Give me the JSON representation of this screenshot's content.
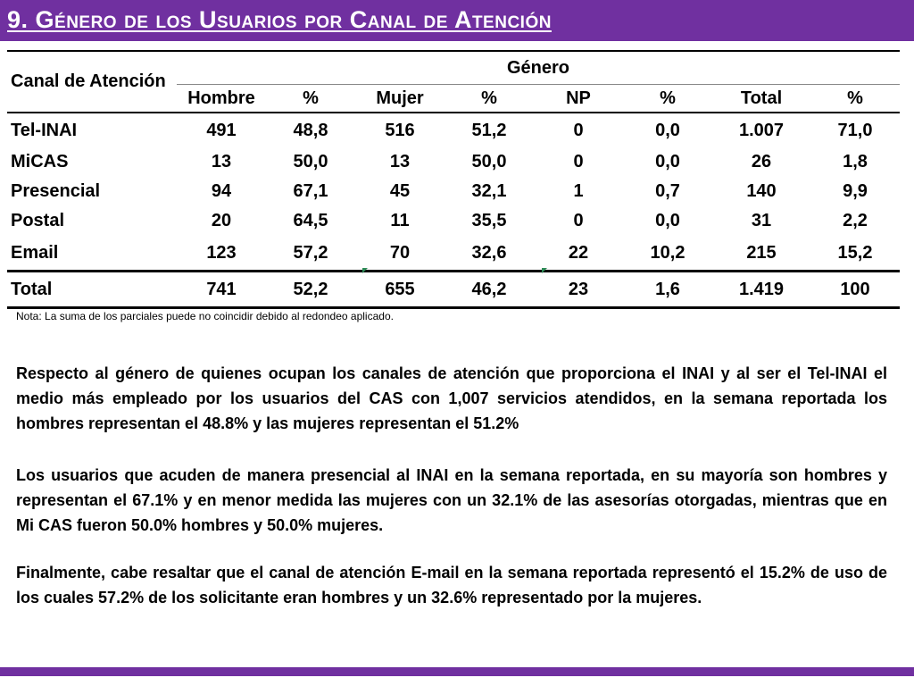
{
  "title": "9. Género de los Usuarios por Canal de Atención",
  "table": {
    "canal_header": "Canal de Atención",
    "genero_header": "Género",
    "columns": [
      "Hombre",
      "%",
      "Mujer",
      "%",
      "NP",
      "%",
      "Total",
      "%"
    ],
    "rows": [
      {
        "label": "Tel-INAI",
        "values": [
          "491",
          "48,8",
          "516",
          "51,2",
          "0",
          "0,0",
          "1.007",
          "71,0"
        ]
      },
      {
        "label": "MiCAS",
        "values": [
          "13",
          "50,0",
          "13",
          "50,0",
          "0",
          "0,0",
          "26",
          "1,8"
        ]
      },
      {
        "label": "Presencial",
        "values": [
          "94",
          "67,1",
          "45",
          "32,1",
          "1",
          "0,7",
          "140",
          "9,9"
        ]
      },
      {
        "label": "Postal",
        "values": [
          "20",
          "64,5",
          "11",
          "35,5",
          "0",
          "0,0",
          "31",
          "2,2"
        ]
      },
      {
        "label": "Email",
        "values": [
          "123",
          "57,2",
          "70",
          "32,6",
          "22",
          "10,2",
          "215",
          "15,2"
        ]
      }
    ],
    "total": {
      "label": "Total",
      "values": [
        "741",
        "52,2",
        "655",
        "46,2",
        "23",
        "1,6",
        "1.419",
        "100"
      ]
    }
  },
  "note": "Nota: La suma de los parciales puede no coincidir debido al redondeo aplicado.",
  "paragraphs": [
    "Respecto al género de quienes ocupan los canales de atención que proporciona el INAI y al ser el Tel-INAI el medio más empleado por los usuarios del CAS con 1,007 servicios atendidos, en la semana reportada los hombres representan el 48.8% y las mujeres representan el 51.2%",
    "Los usuarios que acuden de manera presencial al INAI en la semana reportada, en su mayoría son hombres y representan el 67.1% y en menor medida las mujeres con un 32.1% de las asesorías otorgadas, mientras que en Mi CAS fueron 50.0% hombres y 50.0% mujeres.",
    "Finalmente, cabe resaltar que el canal de atención E-mail en la semana reportada representó el 15.2% de uso de los cuales 57.2% de los solicitante eran hombres y un 32.6% representado por la mujeres."
  ],
  "colors": {
    "accent": "#7030a0",
    "marker": "#2e8b57"
  }
}
